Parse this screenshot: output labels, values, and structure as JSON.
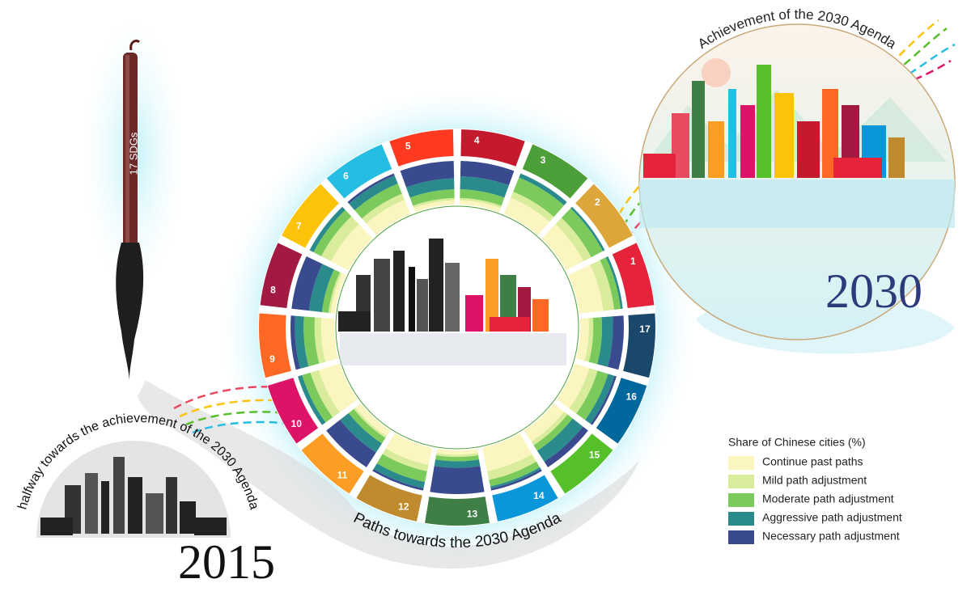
{
  "chart_data": {
    "type": "radial-stacked",
    "title": "Paths towards the 2030 Agenda",
    "categories": [
      "1",
      "2",
      "3",
      "4",
      "5",
      "6",
      "7",
      "8",
      "9",
      "10",
      "11",
      "12",
      "13",
      "14",
      "15",
      "16",
      "17"
    ],
    "category_colors": [
      "#E5243B",
      "#DDA63A",
      "#4C9F38",
      "#C5192D",
      "#FF3A21",
      "#26BDE2",
      "#FCC30B",
      "#A21942",
      "#FD6925",
      "#DD1367",
      "#FD9D24",
      "#BF8B2E",
      "#3F7E44",
      "#0A97D9",
      "#56C02B",
      "#00689D",
      "#19486A"
    ],
    "legend_title": "Share of Chinese cities (%)",
    "series": [
      {
        "name": "Continue past paths",
        "color": "#fbf5c0",
        "values": [
          55,
          45,
          40,
          10,
          10,
          35,
          45,
          10,
          30,
          50,
          15,
          40,
          10,
          55,
          30,
          35,
          20
        ]
      },
      {
        "name": "Mild path adjustment",
        "color": "#d8ec9c",
        "values": [
          25,
          20,
          15,
          5,
          5,
          15,
          25,
          5,
          15,
          20,
          5,
          15,
          5,
          20,
          10,
          20,
          10
        ]
      },
      {
        "name": "Moderate path adjustment",
        "color": "#7dca5c",
        "values": [
          15,
          30,
          35,
          20,
          20,
          25,
          20,
          15,
          25,
          20,
          15,
          25,
          10,
          15,
          15,
          25,
          20
        ]
      },
      {
        "name": "Aggressive path adjustment",
        "color": "#2a8a8c",
        "values": [
          5,
          5,
          10,
          30,
          25,
          20,
          10,
          30,
          20,
          10,
          25,
          15,
          15,
          5,
          30,
          15,
          25
        ]
      },
      {
        "name": "Necessary path adjustment",
        "color": "#3a4a8e",
        "values": [
          0,
          0,
          0,
          35,
          40,
          5,
          0,
          40,
          10,
          0,
          40,
          5,
          60,
          5,
          15,
          5,
          25
        ]
      }
    ]
  },
  "brush_label": "17 SDGs",
  "start": {
    "label": "halfway towards the achievement of the 2030 Agenda",
    "year": "2015"
  },
  "end": {
    "label": "Achievement of the 2030 Agenda",
    "year": "2030"
  }
}
